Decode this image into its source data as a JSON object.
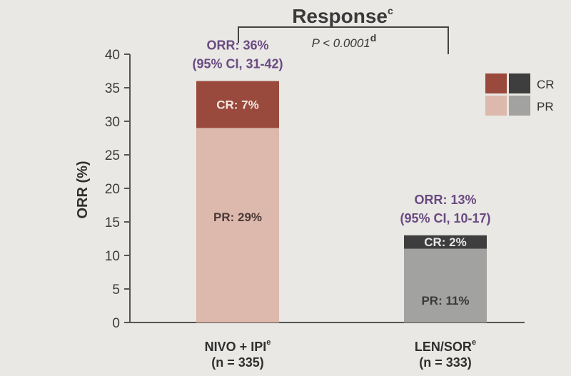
{
  "chart_data": {
    "type": "bar",
    "stacked": true,
    "title": "Response",
    "title_superscript": "c",
    "comparison_label": "P < 0.0001",
    "comparison_superscript": "d",
    "ylabel": "ORR (%)",
    "ylim": [
      0,
      40
    ],
    "yticks": [
      "0",
      "5",
      "10",
      "15",
      "20",
      "25",
      "30",
      "35",
      "40"
    ],
    "ytick_values": [
      0,
      5,
      10,
      15,
      20,
      25,
      30,
      35,
      40
    ],
    "categories": [
      {
        "name": "NIVO + IPI",
        "superscript": "e",
        "n": "(n = 335)"
      },
      {
        "name": "LEN/SOR",
        "superscript": "e",
        "n": "(n = 333)"
      }
    ],
    "series": [
      {
        "name": "PR",
        "values": [
          29,
          11
        ],
        "labels": [
          "PR: 29%",
          "PR: 11%"
        ]
      },
      {
        "name": "CR",
        "values": [
          7,
          2
        ],
        "labels": [
          "CR: 7%",
          "CR: 2%"
        ]
      }
    ],
    "totals": [
      {
        "orr": "ORR: 36%",
        "ci": "(95% CI, 31-42)"
      },
      {
        "orr": "ORR: 13%",
        "ci": "(95% CI, 10-17)"
      }
    ],
    "colors": {
      "pr": [
        "#ddb8ac",
        "#a2a2a0"
      ],
      "cr": [
        "#9a4a3c",
        "#3e3e3e"
      ]
    },
    "legend": {
      "position": "top-right",
      "entries": [
        {
          "label": "CR",
          "colors": [
            "#9a4a3c",
            "#3e3e3e"
          ]
        },
        {
          "label": "PR",
          "colors": [
            "#ddb8ac",
            "#a2a2a0"
          ]
        }
      ]
    }
  }
}
